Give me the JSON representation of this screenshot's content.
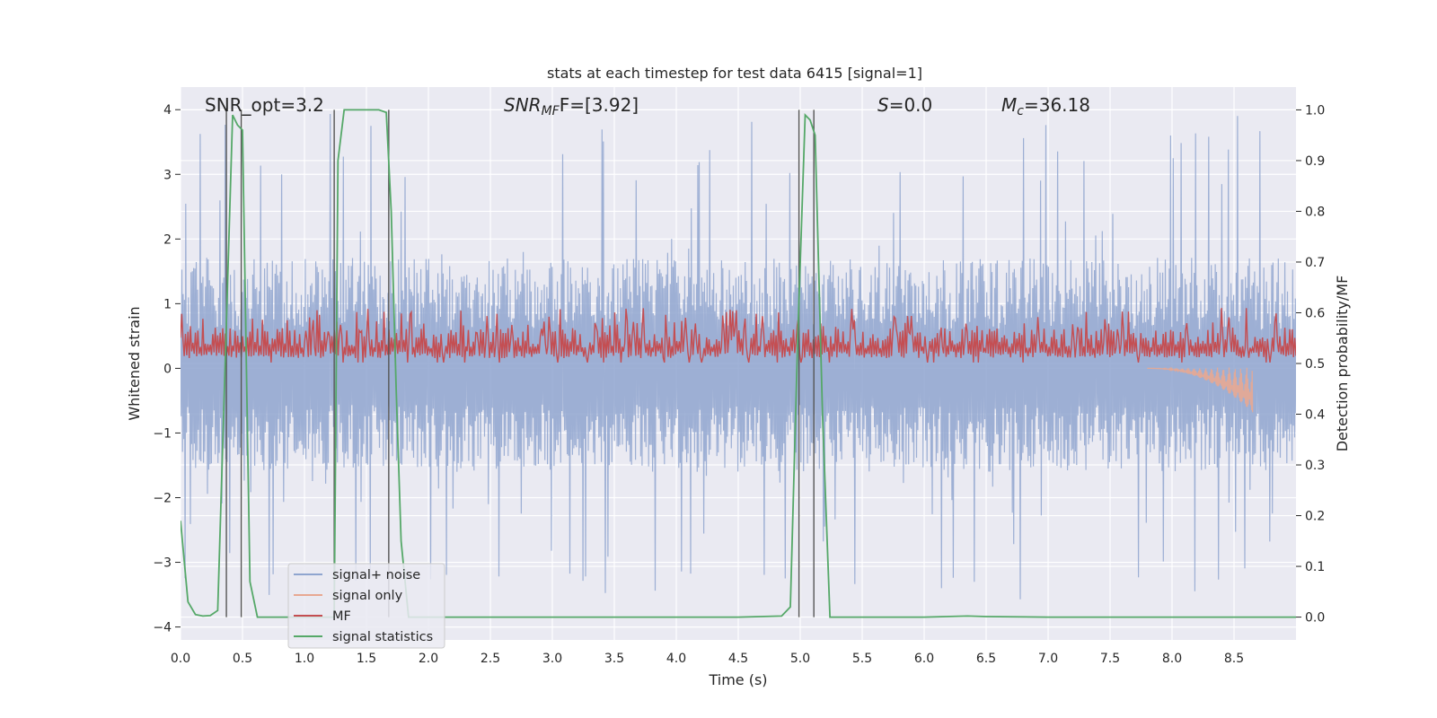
{
  "chart_data": {
    "type": "line",
    "title": "stats at each timestep for test data 6415 [signal=1]",
    "xlabel": "Time (s)",
    "ylabel_left": "Whitened strain",
    "ylabel_right": "Detection probability/MF",
    "xlim": [
      0.0,
      9.0
    ],
    "ylim_left": [
      -4.2,
      4.35
    ],
    "ylim_right": [
      -0.045,
      1.045
    ],
    "xticks": [
      "0.0",
      "0.5",
      "1.0",
      "1.5",
      "2.0",
      "2.5",
      "3.0",
      "3.5",
      "4.0",
      "4.5",
      "5.0",
      "5.5",
      "6.0",
      "6.5",
      "7.0",
      "7.5",
      "8.0",
      "8.5"
    ],
    "xtick_values": [
      0.0,
      0.5,
      1.0,
      1.5,
      2.0,
      2.5,
      3.0,
      3.5,
      4.0,
      4.5,
      5.0,
      5.5,
      6.0,
      6.5,
      7.0,
      7.5,
      8.0,
      8.5
    ],
    "yticks_left": [
      "4",
      "3",
      "2",
      "1",
      "0",
      "−1",
      "−2",
      "−3",
      "−4"
    ],
    "ytick_values_left": [
      4,
      3,
      2,
      1,
      0,
      -1,
      -2,
      -3,
      -4
    ],
    "yticks_right": [
      "1.0",
      "0.9",
      "0.8",
      "0.7",
      "0.6",
      "0.5",
      "0.4",
      "0.3",
      "0.2",
      "0.1",
      "0.0"
    ],
    "ytick_values_right": [
      1.0,
      0.9,
      0.8,
      0.7,
      0.6,
      0.5,
      0.4,
      0.3,
      0.2,
      0.1,
      0.0
    ],
    "grid": true,
    "legend_position": "lower-left",
    "annotations": {
      "snr_opt": "SNR_opt=3.2",
      "snr_mf_main": "SNR",
      "snr_mf_sub": "MF",
      "snr_mf_value": "F=[3.92]",
      "s_main": "S",
      "s_value": "=0.0",
      "mc_main": "M",
      "mc_sub": "c",
      "mc_value": "=36.18"
    },
    "vertical_lines_x": [
      0.37,
      0.49,
      1.24,
      1.68,
      4.99,
      5.11
    ],
    "series": [
      {
        "name": "signal+ noise",
        "color": "#8fa5cf",
        "axis": "left",
        "envelope": {
          "upper_typical": 1.7,
          "upper_peak": 4.0,
          "lower_typical": -1.6,
          "lower_peak": -3.6
        }
      },
      {
        "name": "signal only",
        "color": "#e8a892",
        "axis": "left",
        "chirp": {
          "start": 7.8,
          "end": 8.65,
          "peak_amplitude": 0.8
        }
      },
      {
        "name": "MF",
        "color": "#c44e52",
        "axis": "right",
        "band": {
          "low": 0.5,
          "high": 0.62,
          "peak": 0.61
        }
      },
      {
        "name": "signal statistics",
        "color": "#55a868",
        "axis": "right",
        "x": [
          0.0,
          0.06,
          0.12,
          0.18,
          0.24,
          0.3,
          0.36,
          0.42,
          0.46,
          0.5,
          0.56,
          0.62,
          0.7,
          0.9,
          1.1,
          1.2,
          1.24,
          1.27,
          1.32,
          1.38,
          1.5,
          1.6,
          1.66,
          1.7,
          1.74,
          1.78,
          1.84,
          2.0,
          2.5,
          3.0,
          3.5,
          4.0,
          4.5,
          4.85,
          4.92,
          4.98,
          5.04,
          5.08,
          5.12,
          5.18,
          5.24,
          5.3,
          5.6,
          6.0,
          6.35,
          6.5,
          7.0,
          8.0,
          9.0
        ],
        "y": [
          0.19,
          0.03,
          0.005,
          0.002,
          0.003,
          0.013,
          0.5,
          0.99,
          0.97,
          0.96,
          0.07,
          0.0,
          0.0,
          0.0,
          0.0,
          0.0,
          0.0,
          0.9,
          1.0,
          1.0,
          1.0,
          1.0,
          0.995,
          0.8,
          0.45,
          0.15,
          0.0,
          0.0,
          0.0,
          0.0,
          0.0,
          0.0,
          0.0,
          0.002,
          0.02,
          0.55,
          0.99,
          0.98,
          0.95,
          0.4,
          0.0,
          0.0,
          0.0,
          0.0,
          0.002,
          0.001,
          0.0,
          0.0,
          0.0
        ]
      }
    ]
  }
}
